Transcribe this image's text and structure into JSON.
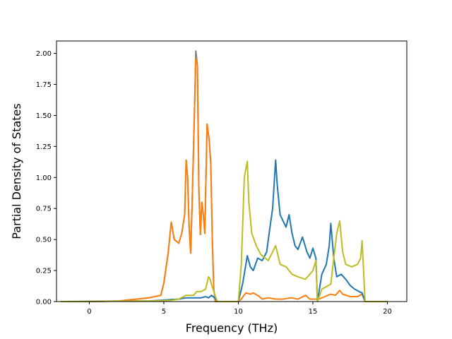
{
  "chart_data": {
    "type": "line",
    "title": "",
    "xlabel": "Frequency (THz)",
    "ylabel": "Partial Density of States",
    "xlim": [
      -2.2,
      21.3
    ],
    "ylim": [
      0.0,
      2.1
    ],
    "xticks": [
      0,
      5,
      10,
      15,
      20
    ],
    "yticks": [
      0.0,
      0.25,
      0.5,
      0.75,
      1.0,
      1.25,
      1.5,
      1.75,
      2.0
    ],
    "xtick_labels": [
      "0",
      "5",
      "10",
      "15",
      "20"
    ],
    "ytick_labels": [
      "0.00",
      "0.25",
      "0.50",
      "0.75",
      "1.00",
      "1.25",
      "1.50",
      "1.75",
      "2.00"
    ],
    "grid": false,
    "legend": "none",
    "series": [
      {
        "color": "#7f7f7f",
        "x": [
          -1.9,
          0,
          2,
          4,
          4.8,
          5.0,
          5.3,
          5.5,
          5.7,
          6.0,
          6.2,
          6.4,
          6.5,
          6.6,
          6.7,
          6.8,
          6.9,
          7.05,
          7.15,
          7.25,
          7.35,
          7.45,
          7.55,
          7.65,
          7.75,
          7.9,
          8.05,
          8.15,
          8.25,
          8.35,
          8.45,
          8.6,
          9.0,
          10.0
        ],
        "y": [
          0,
          0,
          0.005,
          0.03,
          0.05,
          0.15,
          0.4,
          0.64,
          0.5,
          0.47,
          0.55,
          0.7,
          1.14,
          1.0,
          0.6,
          0.39,
          0.8,
          1.5,
          2.02,
          1.9,
          0.9,
          0.54,
          0.8,
          0.7,
          0.55,
          1.43,
          1.3,
          1.1,
          0.5,
          0.1,
          0.0,
          0.0,
          0.0,
          0.0
        ]
      },
      {
        "color": "#ff7f0e",
        "x": [
          -1.9,
          0,
          2,
          4,
          4.8,
          5.0,
          5.3,
          5.5,
          5.7,
          6.0,
          6.2,
          6.4,
          6.5,
          6.6,
          6.7,
          6.8,
          6.9,
          7.05,
          7.15,
          7.25,
          7.35,
          7.45,
          7.55,
          7.65,
          7.75,
          7.9,
          8.05,
          8.15,
          8.25,
          8.35,
          8.45,
          8.6,
          9.0,
          10.0,
          10.2,
          10.5,
          10.8,
          11.0,
          11.3,
          11.6,
          12.0,
          12.5,
          13.0,
          13.5,
          14.0,
          14.5,
          14.8,
          15.0,
          15.4,
          15.8,
          16.2,
          16.5,
          16.8,
          17.0,
          17.5,
          18.0,
          18.3,
          18.5,
          19.0,
          20.0
        ],
        "y": [
          0,
          0,
          0.005,
          0.03,
          0.05,
          0.15,
          0.4,
          0.64,
          0.5,
          0.47,
          0.55,
          0.7,
          1.14,
          1.0,
          0.6,
          0.39,
          0.8,
          1.5,
          1.96,
          1.9,
          0.9,
          0.54,
          0.8,
          0.7,
          0.55,
          1.43,
          1.3,
          1.1,
          0.5,
          0.1,
          0.0,
          0.0,
          0.0,
          0.0,
          0.02,
          0.07,
          0.06,
          0.07,
          0.05,
          0.02,
          0.03,
          0.02,
          0.02,
          0.03,
          0.02,
          0.05,
          0.02,
          0.02,
          0.02,
          0.04,
          0.06,
          0.05,
          0.09,
          0.06,
          0.04,
          0.04,
          0.06,
          0.0,
          0.0,
          0.0
        ]
      },
      {
        "color": "#1f77b4",
        "x": [
          -1.9,
          4,
          6.0,
          6.5,
          7.0,
          7.5,
          7.8,
          8.0,
          8.2,
          8.4,
          8.6,
          10.0,
          10.3,
          10.6,
          10.8,
          11.0,
          11.3,
          11.6,
          11.9,
          12.1,
          12.3,
          12.5,
          12.6,
          12.8,
          13.0,
          13.2,
          13.4,
          13.6,
          13.8,
          14.0,
          14.3,
          14.6,
          14.8,
          15.0,
          15.2,
          15.3,
          15.6,
          15.9,
          16.1,
          16.2,
          16.4,
          16.6,
          16.9,
          17.2,
          17.5,
          17.8,
          18.1,
          18.3,
          18.5,
          19.0,
          20.0
        ],
        "y": [
          0,
          0.005,
          0.02,
          0.03,
          0.03,
          0.03,
          0.04,
          0.03,
          0.05,
          0.03,
          0.0,
          0.0,
          0.15,
          0.37,
          0.28,
          0.25,
          0.35,
          0.33,
          0.4,
          0.58,
          0.75,
          1.14,
          0.95,
          0.7,
          0.65,
          0.6,
          0.7,
          0.55,
          0.45,
          0.42,
          0.52,
          0.4,
          0.35,
          0.43,
          0.35,
          0.0,
          0.22,
          0.3,
          0.45,
          0.63,
          0.35,
          0.2,
          0.22,
          0.18,
          0.13,
          0.1,
          0.08,
          0.07,
          0.0,
          0.0,
          0.0
        ]
      },
      {
        "color": "#bcbd22",
        "x": [
          -1.9,
          4,
          5.5,
          6.0,
          6.5,
          7.0,
          7.2,
          7.5,
          7.8,
          8.0,
          8.1,
          8.3,
          8.5,
          8.6,
          10.0,
          10.2,
          10.4,
          10.6,
          10.7,
          10.9,
          11.2,
          11.5,
          11.8,
          12.0,
          12.3,
          12.5,
          12.8,
          13.2,
          13.6,
          14.0,
          14.5,
          14.8,
          15.0,
          15.2,
          15.3,
          15.6,
          15.9,
          16.2,
          16.4,
          16.6,
          16.8,
          17.0,
          17.2,
          17.6,
          18.0,
          18.2,
          18.3,
          18.5,
          19.0,
          20.0
        ],
        "y": [
          0,
          0.005,
          0.01,
          0.02,
          0.05,
          0.05,
          0.08,
          0.08,
          0.1,
          0.2,
          0.18,
          0.1,
          0.03,
          0.0,
          0.0,
          0.3,
          1.0,
          1.13,
          0.8,
          0.55,
          0.45,
          0.38,
          0.35,
          0.33,
          0.4,
          0.45,
          0.3,
          0.28,
          0.22,
          0.2,
          0.18,
          0.22,
          0.25,
          0.33,
          0.0,
          0.1,
          0.12,
          0.14,
          0.35,
          0.55,
          0.65,
          0.4,
          0.3,
          0.28,
          0.3,
          0.35,
          0.49,
          0.0,
          0.0,
          0.0
        ]
      }
    ]
  }
}
